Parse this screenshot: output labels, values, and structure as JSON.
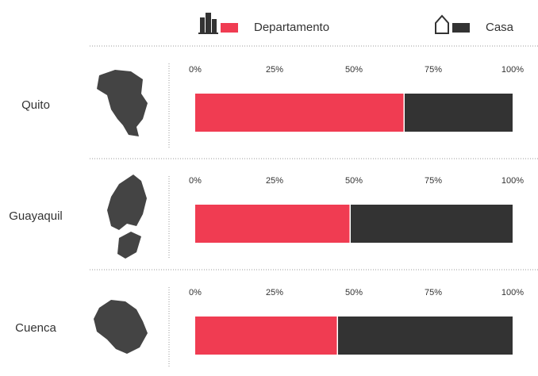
{
  "chart_data": {
    "type": "bar",
    "stacked": true,
    "orientation": "horizontal",
    "categories": [
      "Quito",
      "Guayaquil",
      "Cuenca"
    ],
    "series": [
      {
        "name": "Departamento",
        "color": "#f03c52",
        "values": [
          66,
          49,
          45
        ]
      },
      {
        "name": "Casa",
        "color": "#333333",
        "values": [
          34,
          51,
          55
        ]
      }
    ],
    "xlim": [
      0,
      100
    ],
    "xticks": [
      {
        "value": 0,
        "label": "0%"
      },
      {
        "value": 25,
        "label": "25%"
      },
      {
        "value": 50,
        "label": "50%"
      },
      {
        "value": 75,
        "label": "75%"
      },
      {
        "value": 100,
        "label": "100%"
      }
    ]
  }
}
